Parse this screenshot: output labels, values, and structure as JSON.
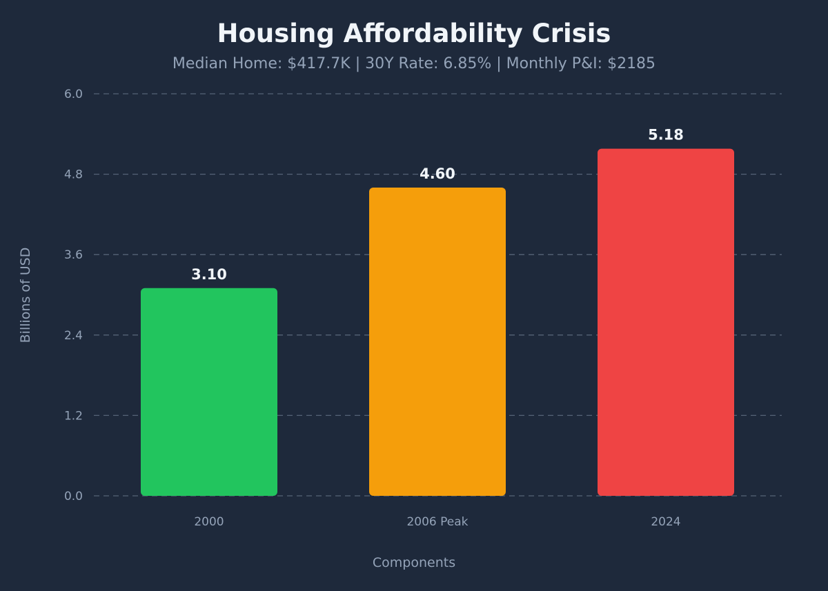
{
  "chart_data": {
    "type": "bar",
    "title": "Housing Affordability Crisis",
    "subtitle": "Median Home: $417.7K | 30Y Rate: 6.85% | Monthly P&I: $2185",
    "xlabel": "Components",
    "ylabel": "Billions of USD",
    "categories": [
      "2000",
      "2006 Peak",
      "2024"
    ],
    "values": [
      3.1,
      4.6,
      5.18
    ],
    "value_labels": [
      "3.10",
      "4.60",
      "5.18"
    ],
    "colors": [
      "#22c55e",
      "#f59e0b",
      "#ef4444"
    ],
    "ylim": [
      0,
      6.0
    ],
    "yticks": [
      0.0,
      1.2,
      2.4,
      3.6,
      4.8,
      6.0
    ],
    "ytick_labels": [
      "0.0",
      "1.2",
      "2.4",
      "3.6",
      "4.8",
      "6.0"
    ],
    "grid": true
  }
}
